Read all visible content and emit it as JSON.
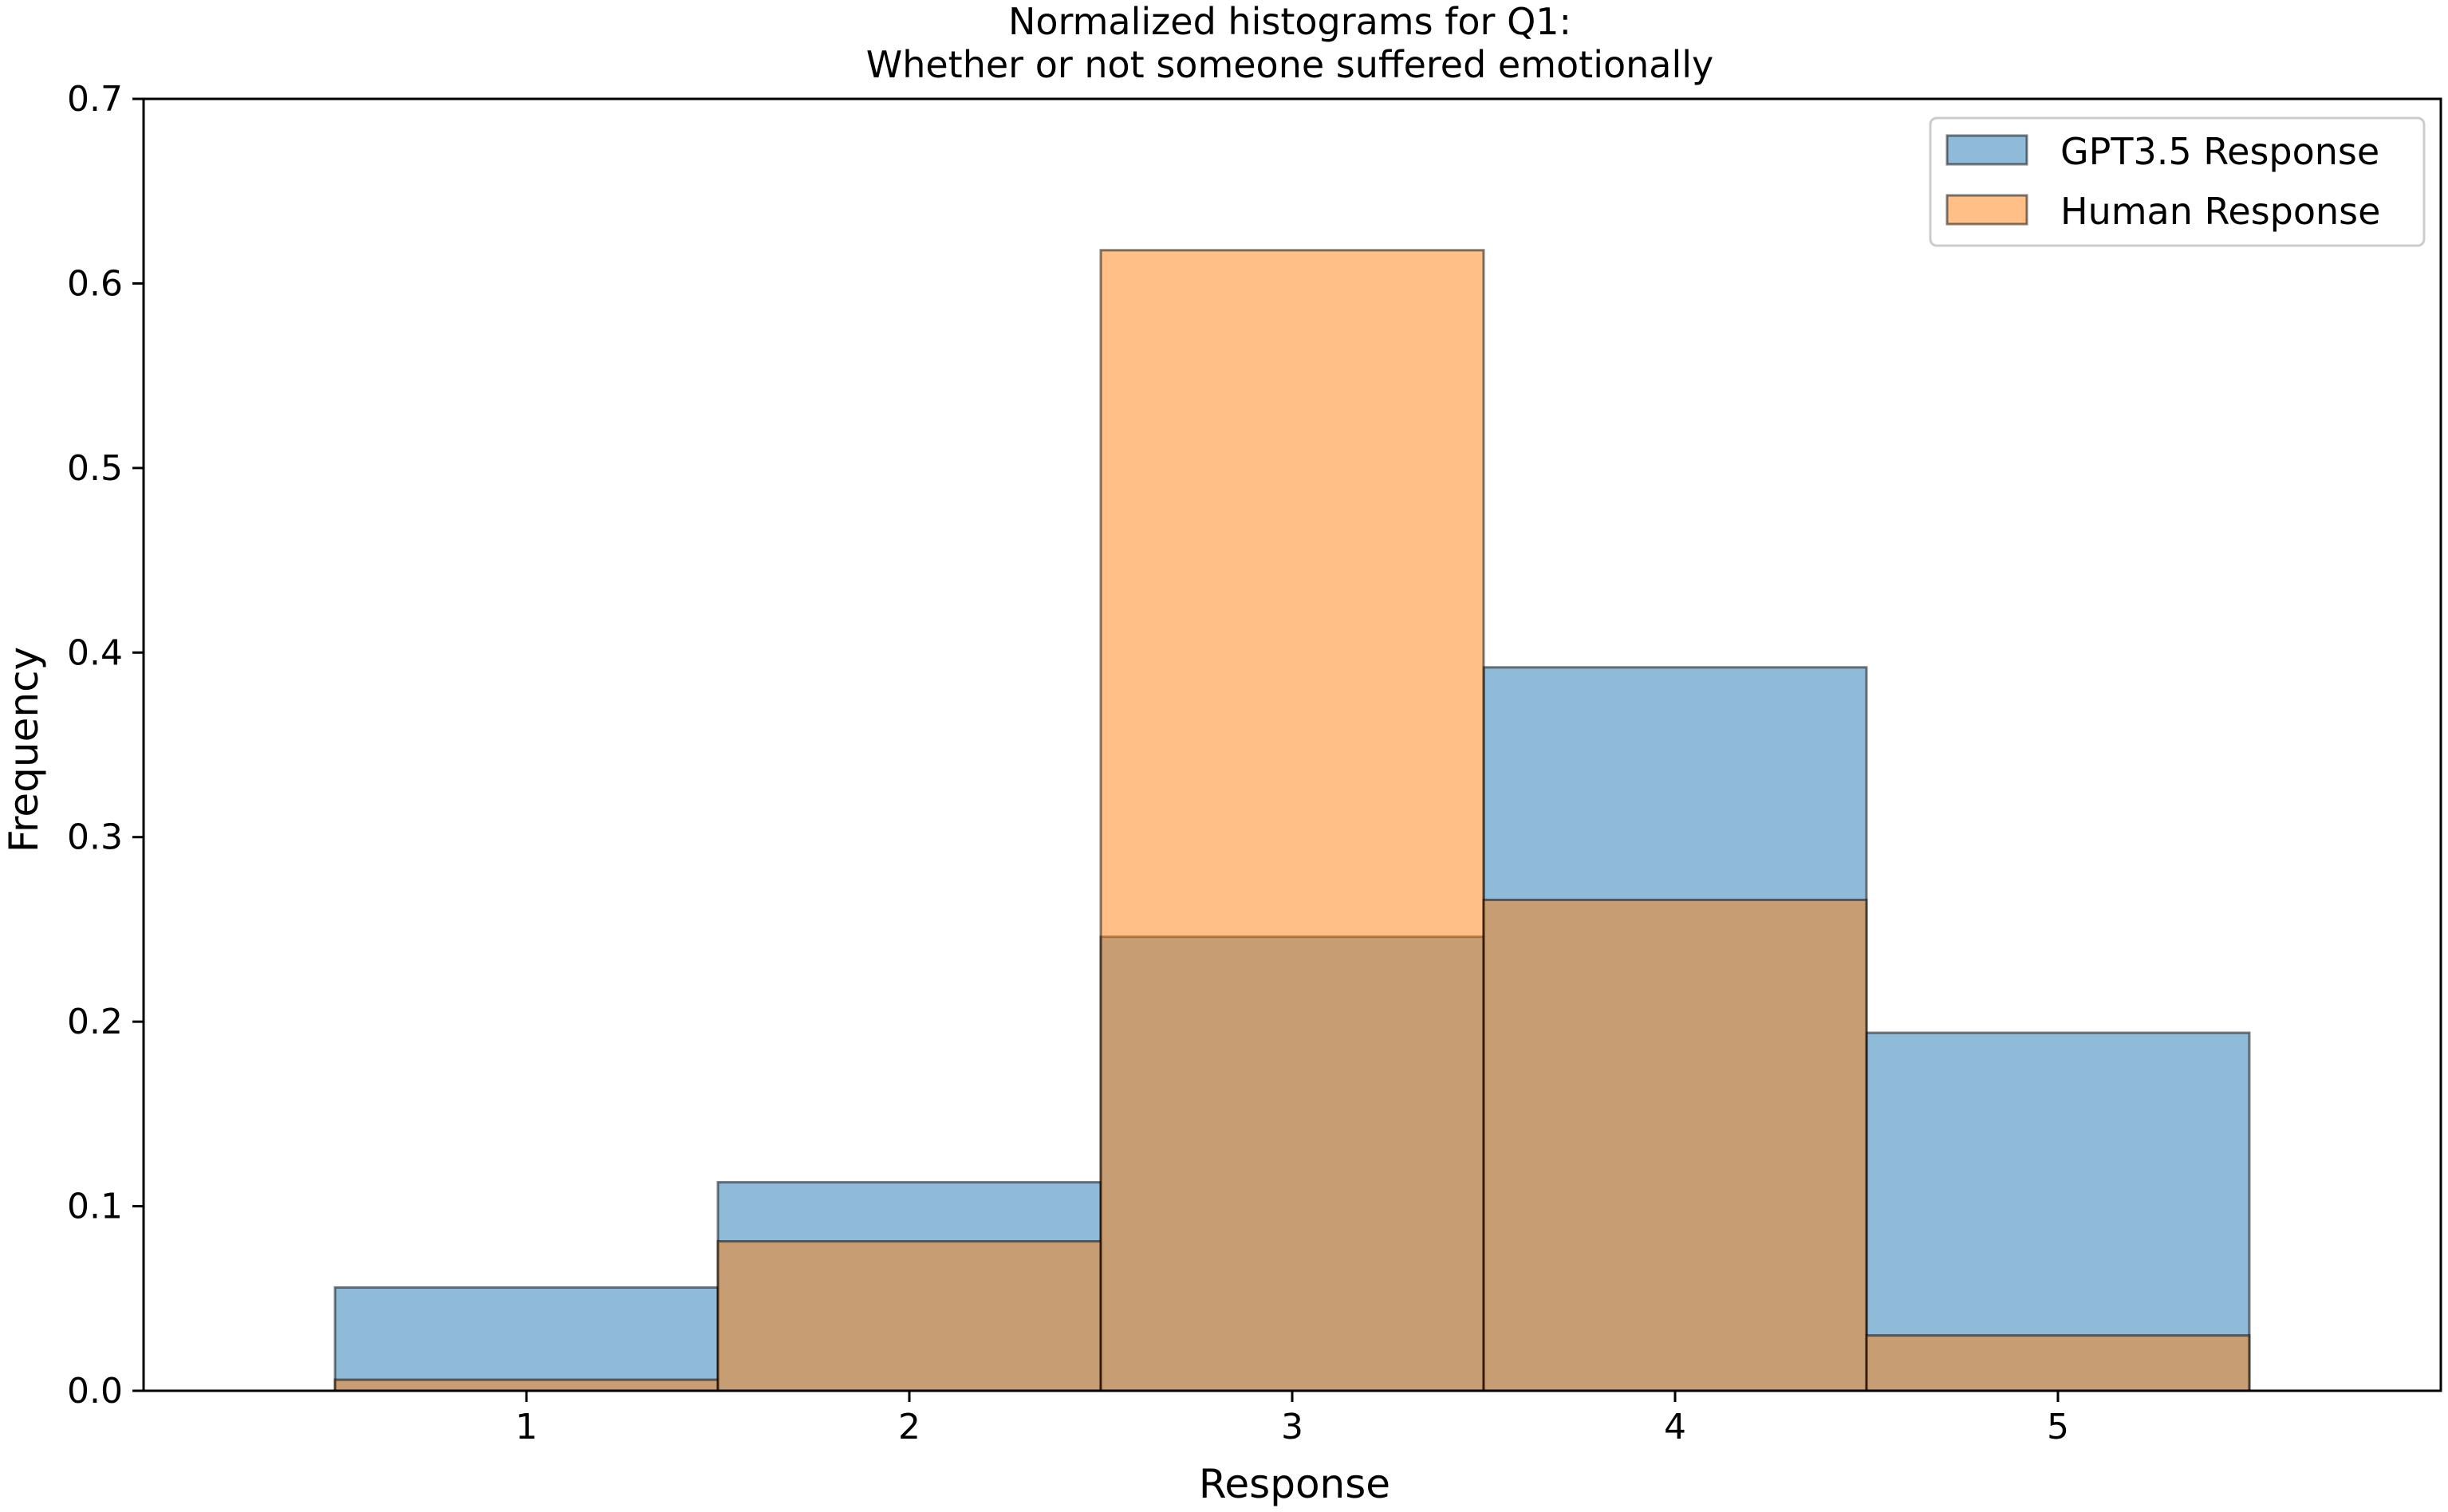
{
  "chart_data": {
    "type": "bar",
    "title": "Normalized histograms for Q1:",
    "subtitle": "Whether or not someone suffered emotionally",
    "xlabel": "Response",
    "ylabel": "Frequency",
    "categories": [
      "1",
      "2",
      "3",
      "4",
      "5"
    ],
    "x_ticks": [
      "1",
      "2",
      "3",
      "4",
      "5"
    ],
    "y_ticks": [
      "0.0",
      "0.1",
      "0.2",
      "0.3",
      "0.4",
      "0.5",
      "0.6",
      "0.7"
    ],
    "xlim": [
      0.0,
      6.0
    ],
    "ylim": [
      0.0,
      0.7
    ],
    "grid": false,
    "legend_position": "top-right",
    "series": [
      {
        "name": "GPT3.5 Response",
        "color": "#1f77b4",
        "opacity": 0.5,
        "values": [
          0.056,
          0.113,
          0.246,
          0.392,
          0.194
        ]
      },
      {
        "name": "Human Response",
        "color": "#ff7f0e",
        "opacity": 0.5,
        "values": [
          0.006,
          0.081,
          0.618,
          0.266,
          0.03
        ]
      }
    ]
  }
}
